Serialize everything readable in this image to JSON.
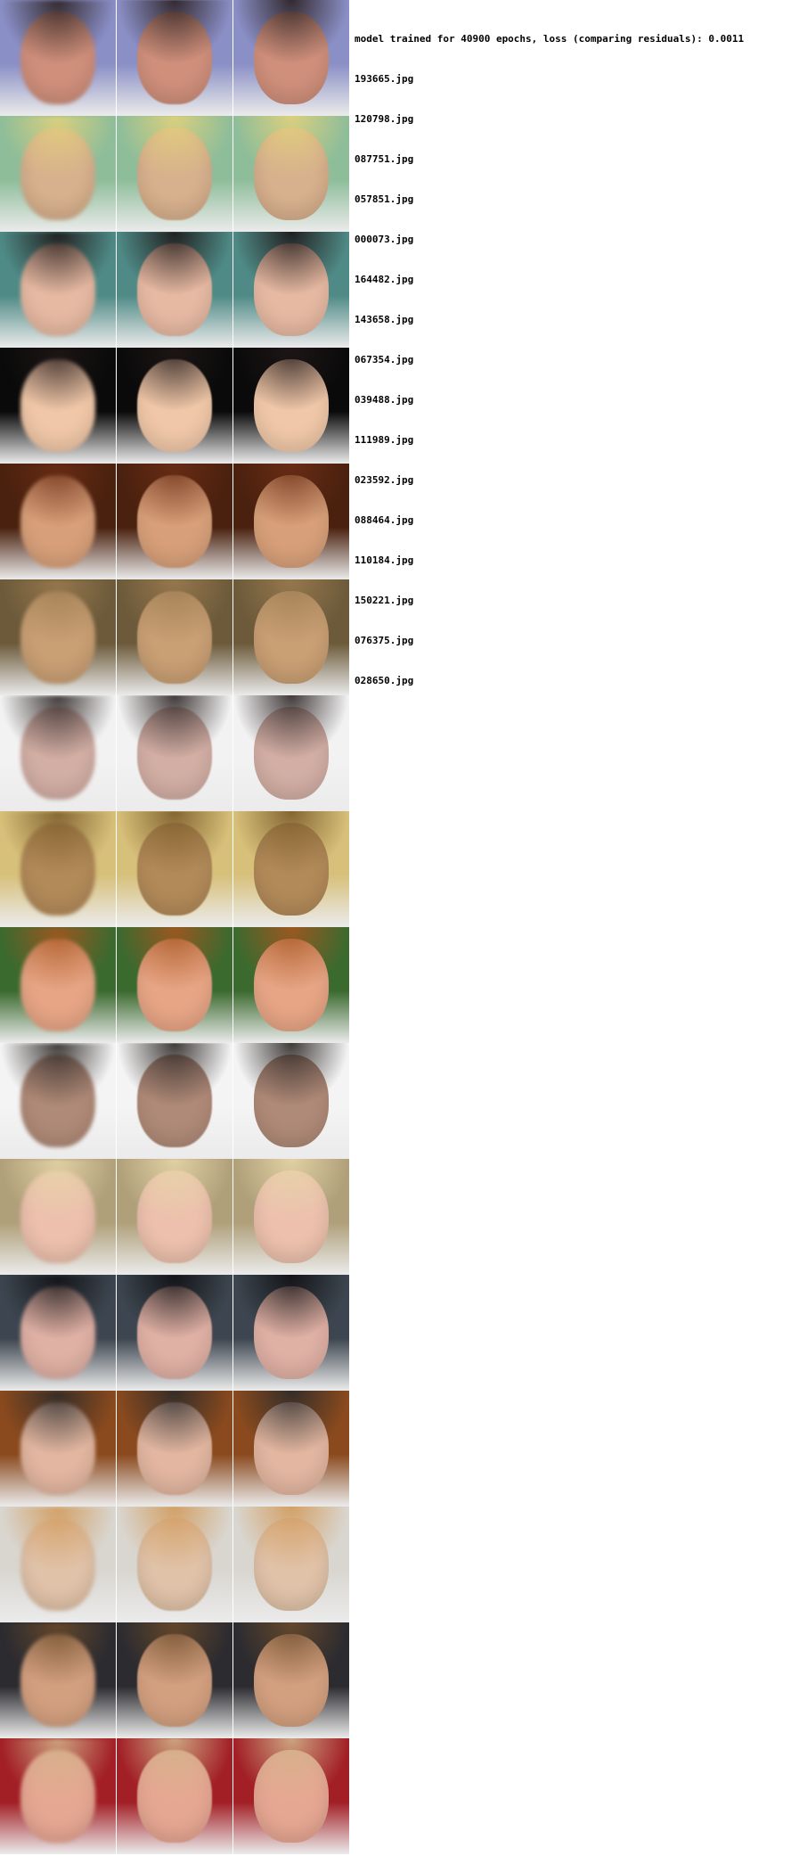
{
  "log": {
    "title": "model trained for 40900 epochs, loss (comparing residuals): 0.0011",
    "files": [
      "193665.jpg",
      "120798.jpg",
      "087751.jpg",
      "057851.jpg",
      "000073.jpg",
      "164482.jpg",
      "143658.jpg",
      "067354.jpg",
      "039488.jpg",
      "111989.jpg",
      "023592.jpg",
      "088464.jpg",
      "110184.jpg",
      "150221.jpg",
      "076375.jpg",
      "028650.jpg"
    ]
  },
  "grid": {
    "rows": [
      {
        "bg": "#8a8fc6",
        "skin": "#cf8f7b",
        "hair": "#2a1f1f"
      },
      {
        "bg": "#8ebd9a",
        "skin": "#d7b08d",
        "hair": "#e3d27a"
      },
      {
        "bg": "#4f8a86",
        "skin": "#e6b9a2",
        "hair": "#1b1414"
      },
      {
        "bg": "#0a0a0a",
        "skin": "#f0c7a8",
        "hair": "#201717"
      },
      {
        "bg": "#4a210f",
        "skin": "#d8a07a",
        "hair": "#6b2d14"
      },
      {
        "bg": "#6c5a3a",
        "skin": "#c99f74",
        "hair": "#9b7b50"
      },
      {
        "bg": "#f2f2f2",
        "skin": "#d2aea4",
        "hair": "#2f2626"
      },
      {
        "bg": "#d7c07a",
        "skin": "#b28a59",
        "hair": "#7b5b2a"
      },
      {
        "bg": "#3b6a2f",
        "skin": "#e7a585",
        "hair": "#a7551f"
      },
      {
        "bg": "#f4f4f4",
        "skin": "#b08a78",
        "hair": "#2a2523"
      },
      {
        "bg": "#b0a07a",
        "skin": "#ecc0ad",
        "hair": "#e7d6a8"
      },
      {
        "bg": "#3d4650",
        "skin": "#dfb0a4",
        "hair": "#0f0f12"
      },
      {
        "bg": "#8a4a1e",
        "skin": "#e2b6a0",
        "hair": "#2a2a2a"
      },
      {
        "bg": "#d9d6d0",
        "skin": "#e0c2a8",
        "hair": "#d29a5a"
      },
      {
        "bg": "#2b2b30",
        "skin": "#d3a07f",
        "hair": "#6a4a2a"
      },
      {
        "bg": "#a21f26",
        "skin": "#e6a792",
        "hair": "#d1b38b"
      }
    ]
  }
}
